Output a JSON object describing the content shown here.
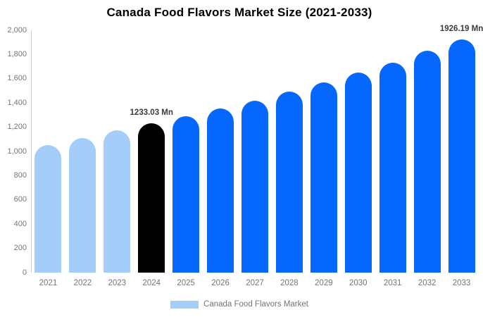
{
  "title": "Canada Food Flavors Market Size (2021-2033)",
  "legend": {
    "label": "Canada Food Flavors Market",
    "swatch_color": "#A5CDF9"
  },
  "colors": {
    "historical_bar": "#A5CDF9",
    "base_year_bar": "#000000",
    "forecast_bar": "#0667FD",
    "axis_text": "#757575",
    "data_label_text": "#3b3b3b",
    "axis_line": "#cccccc",
    "title_text": "#000000"
  },
  "chart_data": {
    "type": "bar",
    "title": "Canada Food Flavors Market Size (2021-2033)",
    "categories": [
      "2021",
      "2022",
      "2023",
      "2024",
      "2025",
      "2026",
      "2027",
      "2028",
      "2029",
      "2030",
      "2031",
      "2032",
      "2033"
    ],
    "values": [
      1050,
      1110,
      1172,
      1233.03,
      1290,
      1355,
      1420,
      1495,
      1570,
      1650,
      1735,
      1830,
      1926.19
    ],
    "bar_colors": [
      "#A5CDF9",
      "#A5CDF9",
      "#A5CDF9",
      "#000000",
      "#0667FD",
      "#0667FD",
      "#0667FD",
      "#0667FD",
      "#0667FD",
      "#0667FD",
      "#0667FD",
      "#0667FD",
      "#0667FD"
    ],
    "annotations": [
      {
        "category": "2024",
        "text": "1233.03 Mn"
      },
      {
        "category": "2033",
        "text": "1926.19 Mn"
      }
    ],
    "xlabel": "",
    "ylabel": "",
    "ylim": [
      0,
      2000
    ],
    "ytick_step": 200,
    "grid": false,
    "legend_position": "bottom",
    "unit": "Mn"
  }
}
